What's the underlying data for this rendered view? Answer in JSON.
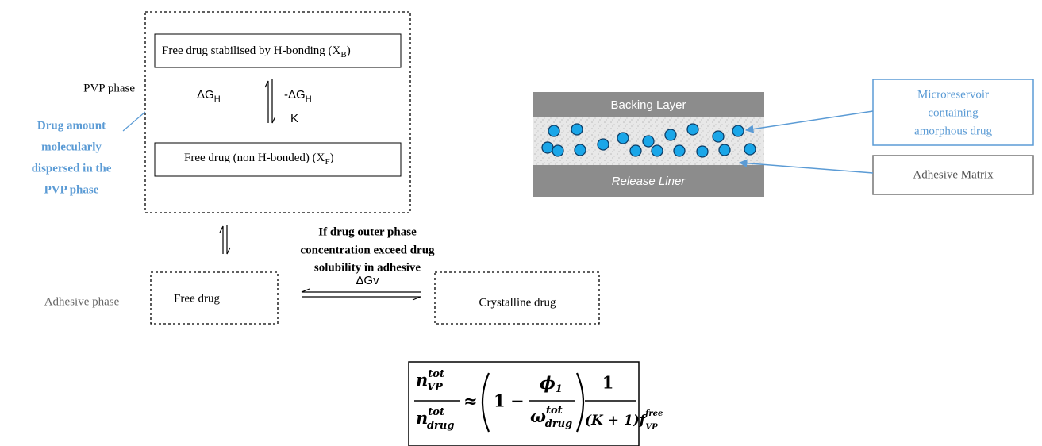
{
  "left_diagram": {
    "pvp_phase_label": "PVP phase",
    "adhesive_phase_label": "Adhesive phase",
    "drug_amount_note": [
      "Drug amount",
      "molecularly",
      "dispersed in the",
      "PVP phase"
    ],
    "bonded_box": {
      "text": "Free drug stabilised by H-bonding (X",
      "subscript": "B",
      "close": ")"
    },
    "free_box": {
      "text": "Free drug (non H-bonded)  (X",
      "subscript": "F",
      "close": ")"
    },
    "delta_g_h_left": {
      "text": "ΔG",
      "subscript": "H"
    },
    "delta_g_h_right": {
      "text": "-ΔG",
      "subscript": "H"
    },
    "k_label": "K",
    "condition_note": [
      "If drug outer phase",
      "concentration exceed drug",
      "solubility in adhesive"
    ],
    "delta_g_v": "ΔGv",
    "free_drug_box": "Free drug",
    "crystalline_box": "Crystalline drug"
  },
  "equation": {
    "lhs_num": {
      "base": "n",
      "sup": "tot",
      "sub": "VP"
    },
    "lhs_den": {
      "base": "n",
      "sup": "tot",
      "sub": "drug"
    },
    "approx": "≈",
    "one": "1",
    "minus": "−",
    "phi": {
      "base": "ϕ",
      "sub": "1"
    },
    "omega": {
      "base": "ω",
      "sup": "tot",
      "sub": "drug"
    },
    "rhs_num": "1",
    "rhs_den": {
      "base": "(K + 1)f",
      "sup": "free",
      "sub": "VP"
    }
  },
  "patch_diagram": {
    "backing_layer": "Backing Layer",
    "release_liner": "Release Liner",
    "microreservoir_label": [
      "Microreservoir",
      "containing",
      "amorphous drug"
    ],
    "adhesive_matrix_label": "Adhesive Matrix"
  }
}
